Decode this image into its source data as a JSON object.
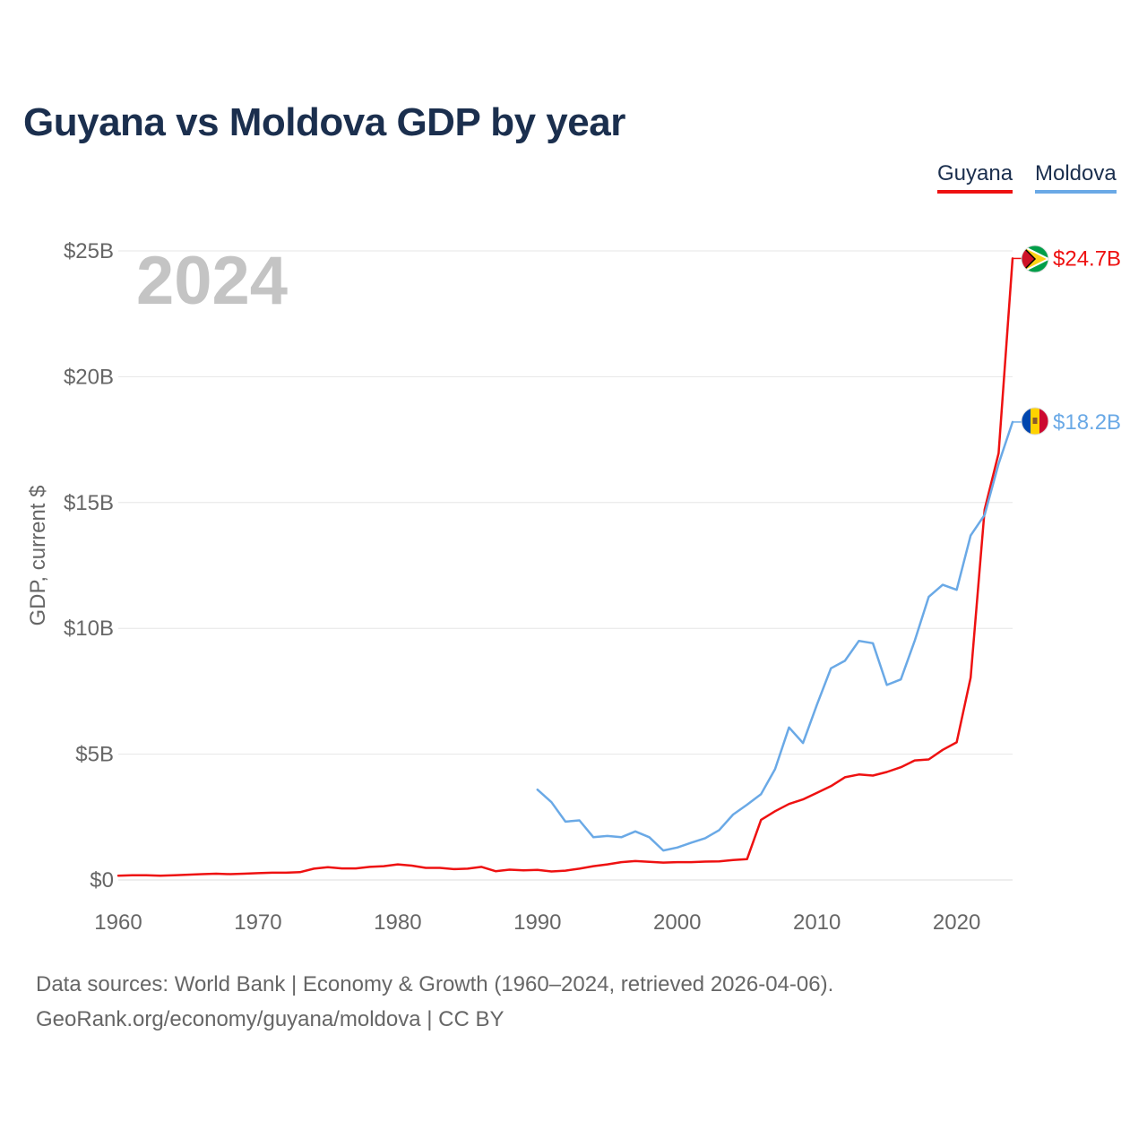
{
  "chart_data": {
    "type": "line",
    "title": "Guyana vs Moldova GDP by year",
    "year_label": "2024",
    "ylabel": "GDP, current $",
    "xlabel": "",
    "xlim": [
      1960,
      2024
    ],
    "ylim": [
      0,
      25
    ],
    "y_ticks": [
      {
        "value": 0,
        "label": "$0"
      },
      {
        "value": 5,
        "label": "$5B"
      },
      {
        "value": 10,
        "label": "$10B"
      },
      {
        "value": 15,
        "label": "$15B"
      },
      {
        "value": 20,
        "label": "$20B"
      },
      {
        "value": 25,
        "label": "$25B"
      }
    ],
    "x_ticks": [
      {
        "value": 1960,
        "label": "1960"
      },
      {
        "value": 1970,
        "label": "1970"
      },
      {
        "value": 1980,
        "label": "1980"
      },
      {
        "value": 1990,
        "label": "1990"
      },
      {
        "value": 2000,
        "label": "2000"
      },
      {
        "value": 2010,
        "label": "2010"
      },
      {
        "value": 2020,
        "label": "2020"
      }
    ],
    "grid": true,
    "legend_position": "top-right",
    "series": [
      {
        "name": "Guyana",
        "color": "#ee1111",
        "end_label": "$24.7B",
        "flag": "guyana-flag",
        "x": [
          1960,
          1961,
          1962,
          1963,
          1964,
          1965,
          1966,
          1967,
          1968,
          1969,
          1970,
          1971,
          1972,
          1973,
          1974,
          1975,
          1976,
          1977,
          1978,
          1979,
          1980,
          1981,
          1982,
          1983,
          1984,
          1985,
          1986,
          1987,
          1988,
          1989,
          1990,
          1991,
          1992,
          1993,
          1994,
          1995,
          1996,
          1997,
          1998,
          1999,
          2000,
          2001,
          2002,
          2003,
          2004,
          2005,
          2006,
          2007,
          2008,
          2009,
          2010,
          2011,
          2012,
          2013,
          2014,
          2015,
          2016,
          2017,
          2018,
          2019,
          2020,
          2021,
          2022,
          2023,
          2024
        ],
        "values": [
          0.17,
          0.19,
          0.19,
          0.17,
          0.19,
          0.21,
          0.23,
          0.25,
          0.23,
          0.25,
          0.27,
          0.29,
          0.29,
          0.31,
          0.45,
          0.51,
          0.46,
          0.46,
          0.52,
          0.55,
          0.62,
          0.57,
          0.48,
          0.48,
          0.43,
          0.45,
          0.52,
          0.35,
          0.41,
          0.38,
          0.4,
          0.34,
          0.37,
          0.45,
          0.55,
          0.62,
          0.71,
          0.75,
          0.72,
          0.69,
          0.71,
          0.71,
          0.73,
          0.74,
          0.79,
          0.83,
          2.39,
          2.73,
          3.02,
          3.2,
          3.46,
          3.73,
          4.08,
          4.19,
          4.15,
          4.29,
          4.48,
          4.75,
          4.79,
          5.17,
          5.47,
          8.04,
          14.72,
          16.96,
          24.7
        ]
      },
      {
        "name": "Moldova",
        "color": "#6aa9e6",
        "end_label": "$18.2B",
        "flag": "moldova-flag",
        "x": [
          1990,
          1991,
          1992,
          1993,
          1994,
          1995,
          1996,
          1997,
          1998,
          1999,
          2000,
          2001,
          2002,
          2003,
          2004,
          2005,
          2006,
          2007,
          2008,
          2009,
          2010,
          2011,
          2012,
          2013,
          2014,
          2015,
          2016,
          2017,
          2018,
          2019,
          2020,
          2021,
          2022,
          2023,
          2024
        ],
        "values": [
          3.59,
          3.09,
          2.32,
          2.37,
          1.7,
          1.75,
          1.7,
          1.93,
          1.7,
          1.17,
          1.29,
          1.48,
          1.66,
          1.98,
          2.6,
          2.99,
          3.41,
          4.4,
          6.06,
          5.44,
          6.97,
          8.41,
          8.71,
          9.5,
          9.41,
          7.75,
          7.97,
          9.51,
          11.25,
          11.73,
          11.53,
          13.69,
          14.51,
          16.54,
          18.2
        ]
      }
    ]
  },
  "legend": {
    "guyana": "Guyana",
    "moldova": "Moldova"
  },
  "footer": {
    "sources": "Data sources: World Bank | Economy & Growth (1960–2024, retrieved 2026-04-06).",
    "url": "GeoRank.org/economy/guyana/moldova | CC BY"
  },
  "colors": {
    "title": "#1b2f4e",
    "axis_text": "#666666",
    "grid": "#e6e6e6",
    "year_watermark": "#c4c4c4"
  }
}
